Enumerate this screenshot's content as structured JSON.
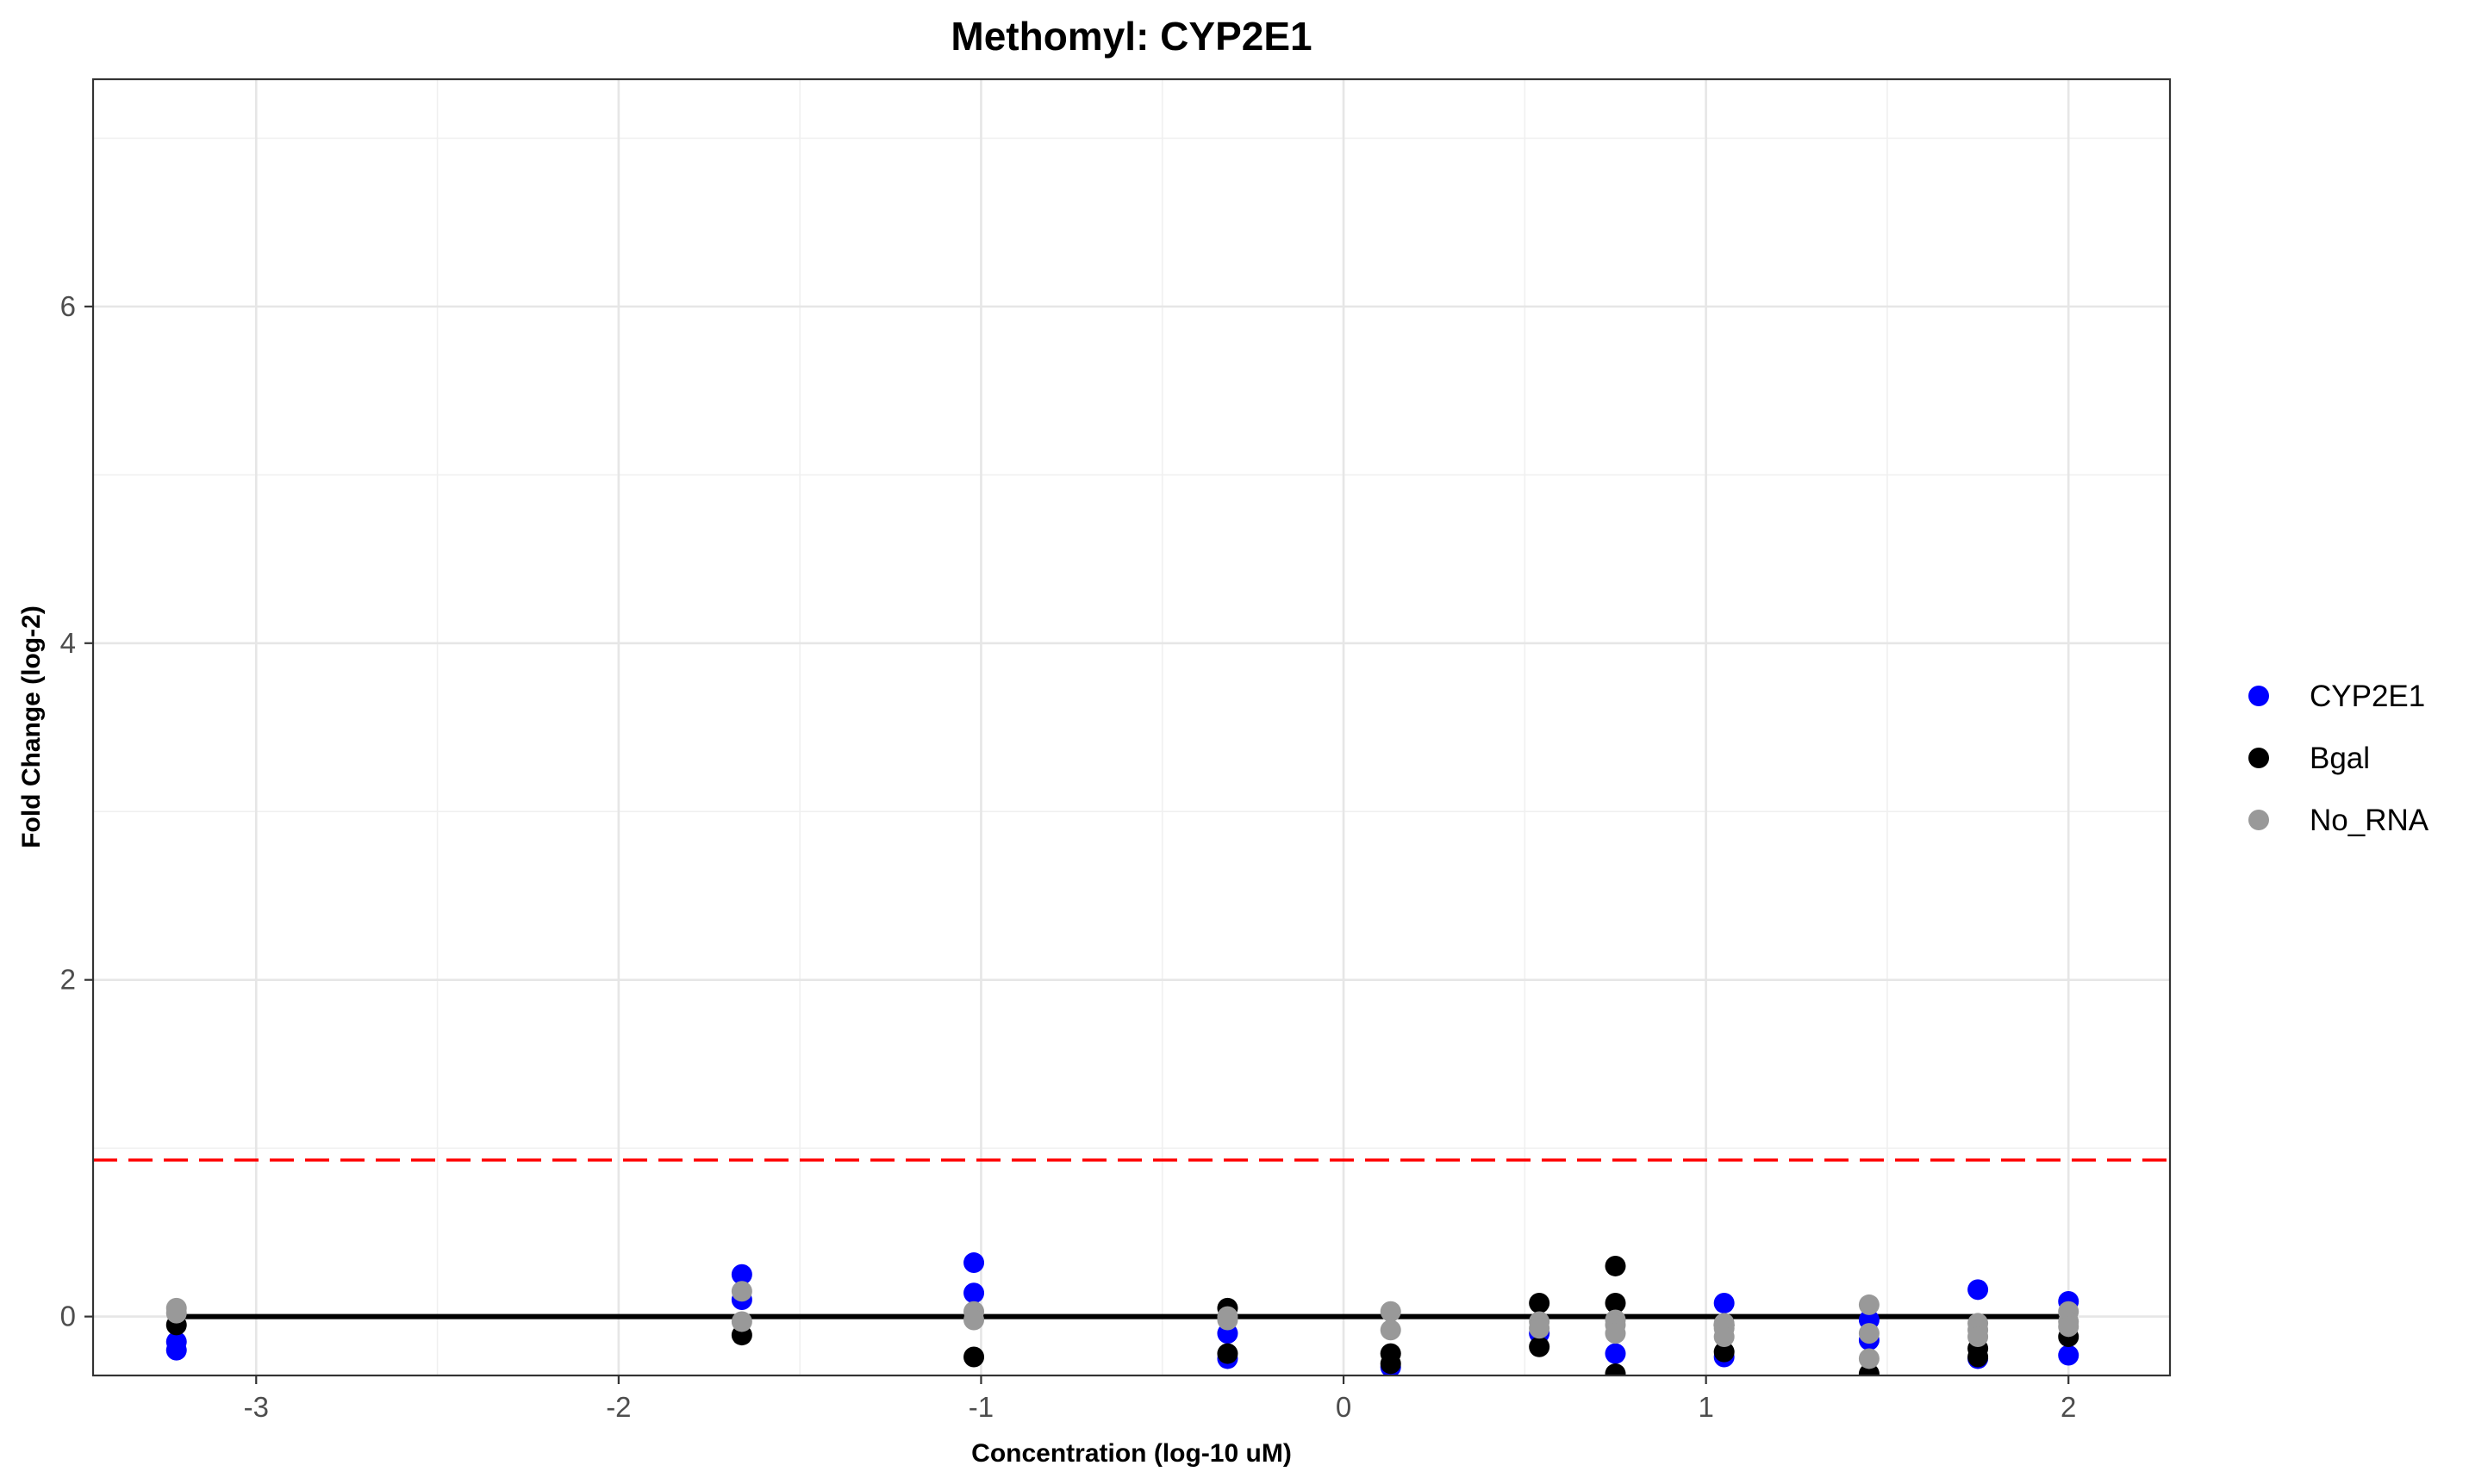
{
  "chart_data": {
    "type": "scatter",
    "title": "Methomyl: CYP2E1",
    "xlabel": "Concentration (log-10 uM)",
    "ylabel": "Fold Change (log-2)",
    "xlim": [
      -3.45,
      2.28
    ],
    "ylim": [
      -0.35,
      7.35
    ],
    "x_ticks": [
      -3,
      -2,
      -1,
      0,
      1,
      2
    ],
    "y_ticks": [
      0,
      2,
      4,
      6
    ],
    "grid": true,
    "legend_position": "right",
    "reference_lines": [
      {
        "type": "hline",
        "y": 0,
        "x_range": [
          -3.22,
          2.0
        ],
        "color": "#000000",
        "style": "solid"
      },
      {
        "type": "hline",
        "y": 0.93,
        "color": "#ff0000",
        "style": "dashed"
      }
    ],
    "series": [
      {
        "name": "CYP2E1",
        "color": "#0000ff",
        "points": [
          [
            -3.22,
            -0.15
          ],
          [
            -3.22,
            -0.2
          ],
          [
            -1.66,
            0.25
          ],
          [
            -1.66,
            0.1
          ],
          [
            -1.02,
            0.32
          ],
          [
            -1.02,
            0.14
          ],
          [
            -0.32,
            -0.1
          ],
          [
            -0.32,
            -0.25
          ],
          [
            0.13,
            -0.3
          ],
          [
            0.54,
            -0.1
          ],
          [
            0.75,
            -0.22
          ],
          [
            1.05,
            0.08
          ],
          [
            1.05,
            -0.24
          ],
          [
            1.45,
            -0.02
          ],
          [
            1.45,
            -0.14
          ],
          [
            1.75,
            0.16
          ],
          [
            1.75,
            -0.25
          ],
          [
            2.0,
            0.09
          ],
          [
            2.0,
            -0.23
          ]
        ]
      },
      {
        "name": "Bgal",
        "color": "#000000",
        "points": [
          [
            -3.22,
            -0.05
          ],
          [
            -1.66,
            -0.11
          ],
          [
            -1.02,
            -0.24
          ],
          [
            -0.32,
            0.05
          ],
          [
            -0.32,
            -0.22
          ],
          [
            0.13,
            -0.22
          ],
          [
            0.13,
            -0.28
          ],
          [
            0.54,
            0.08
          ],
          [
            0.54,
            -0.18
          ],
          [
            0.75,
            0.3
          ],
          [
            0.75,
            0.08
          ],
          [
            0.75,
            -0.34
          ],
          [
            1.05,
            -0.05
          ],
          [
            1.05,
            -0.21
          ],
          [
            1.45,
            -0.34
          ],
          [
            1.75,
            -0.19
          ],
          [
            1.75,
            -0.24
          ],
          [
            2.0,
            -0.12
          ]
        ]
      },
      {
        "name": "No_RNA",
        "color": "#999999",
        "points": [
          [
            -3.22,
            0.05
          ],
          [
            -3.22,
            0.02
          ],
          [
            -1.66,
            0.15
          ],
          [
            -1.66,
            -0.03
          ],
          [
            -1.02,
            0.03
          ],
          [
            -1.02,
            -0.02
          ],
          [
            -0.32,
            0.0
          ],
          [
            -0.32,
            -0.02
          ],
          [
            0.13,
            0.03
          ],
          [
            0.13,
            -0.08
          ],
          [
            0.54,
            -0.03
          ],
          [
            0.54,
            -0.07
          ],
          [
            0.75,
            -0.02
          ],
          [
            0.75,
            -0.05
          ],
          [
            0.75,
            -0.1
          ],
          [
            1.05,
            -0.04
          ],
          [
            1.05,
            -0.07
          ],
          [
            1.05,
            -0.12
          ],
          [
            1.45,
            0.07
          ],
          [
            1.45,
            -0.1
          ],
          [
            1.45,
            -0.25
          ],
          [
            1.75,
            -0.04
          ],
          [
            1.75,
            -0.08
          ],
          [
            1.75,
            -0.12
          ],
          [
            2.0,
            0.03
          ],
          [
            2.0,
            -0.03
          ],
          [
            2.0,
            -0.06
          ]
        ]
      }
    ]
  }
}
